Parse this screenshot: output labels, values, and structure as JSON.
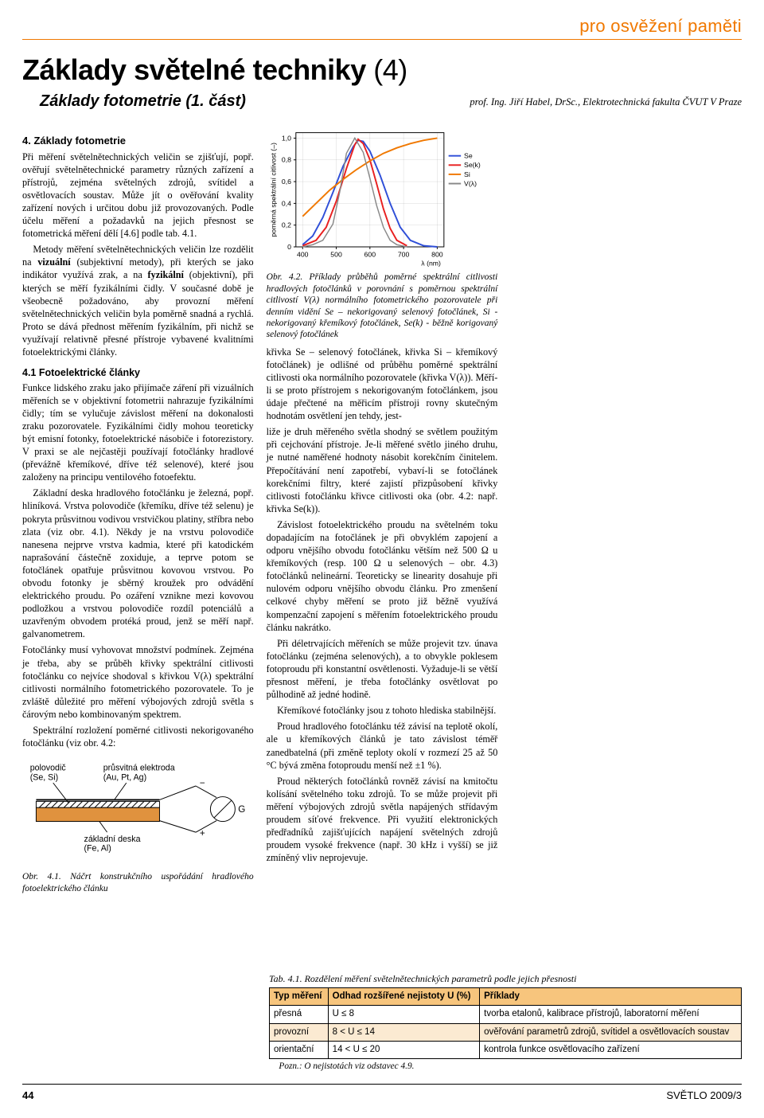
{
  "kicker": "pro osvěžení paměti",
  "title_main": "Základy světelné techniky ",
  "title_num": "(4)",
  "subtitle": "Základy fotometrie (1. část)",
  "byline": "prof. Ing. Jiří Habel, DrSc., Elektrotechnická fakulta ČVUT V Praze",
  "sec4": "4. Základy fotometrie",
  "p1": "Při měření světelnětechnických veličin se zjišťují, popř. ověřují světelnětechnické parametry různých zařízení a přístrojů, zejména světelných zdrojů, svítidel a osvětlovacích soustav. Může jít o ověřování kvality zařízení nových i určitou dobu již provozovaných. Podle účelu měření a požadavků na jejich přesnost se fotometrická měření dělí [4.6] podle tab. 4.1.",
  "p2a": "Metody měření světelnětechnických veličin lze rozdělit na ",
  "p2b": "vizuální",
  "p2c": " (subjektivní metody), při kterých se jako indikátor využívá zrak, a na ",
  "p2d": "fyzikální",
  "p2e": " (objektivní), při kterých se měří fyzikálními čidly. V současné době je všeobecně požadováno, aby provozní měření světelnětechnických veličin byla poměrně snadná a rychlá. Proto se dává přednost měřením fyzikálním, při nichž se využívají relativně přesné přístroje vybavené kvalitními fotoelektrickými články.",
  "sub41": "4.1 Fotoelektrické články",
  "p3": "Funkce lidského zraku jako přijímače záření při vizuálních měřeních se v objektivní fotometrii nahrazuje fyzikálními čidly; tím se vylučuje závislost měření na dokonalosti zraku pozorovatele. Fyzikálními čidly mohou teoreticky být emisní fotonky, fotoelektrické násobiče i fotorezistory. V praxi se ale nejčastěji používají fotočlánky hradlové (převážně křemíkové, dříve též selenové), které jsou založeny na principu ventilového fotoefektu.",
  "p4": "Základní deska hradlového fotočlánku je železná, popř. hliníková. Vrstva polovodiče (křemíku, dříve též selenu) je pokryta průsvitnou vodivou vrstvičkou platiny, stříbra nebo zlata (viz obr. 4.1). Někdy je na vrstvu polovodiče nanesena nejprve vrstva kadmia, které při katodickém naprašování částečně zoxiduje, a teprve potom se fotočlánek opatřuje průsvitnou kovovou vrstvou. Po obvodu fotonky je sběrný kroužek pro odvádění elektrického proudu. Po ozáření vznikne mezi kovovou podložkou a vrstvou polovodiče rozdíl potenciálů a uzavřeným obvodem protéká proud, jenž se měří např. galvanometrem.",
  "p5": "Fotočlánky musí vyhovovat množství podmínek. Zejména je třeba, aby se průběh křivky spektrální citlivosti fotočlánku co nejvíce shodoval s křivkou V(λ) spektrální citlivosti normálního fotometrického pozorovatele. To je zvláště důležité pro měření výbojových zdrojů světla s čárovým nebo kombinovaným spektrem.",
  "p6": "Spektrální rozložení poměrné citlivosti nekorigovaného fotočlánku (viz obr. 4.2: ",
  "d41_l1": "polovodič",
  "d41_l2": "(Se, Si)",
  "d41_l3": "průsvitná elektroda",
  "d41_l4": "(Au, Pt, Ag)",
  "d41_l5": "základní deska",
  "d41_l6": "(Fe, Al)",
  "d41_g": "G",
  "fig41cap": "Obr. 4.1. Náčrt konstrukčního uspořádání hradlového fotoelektrického článku",
  "chart42": {
    "ylabel": "poměrná spektrální citlivost (–)",
    "xlabel": "λ (nm)",
    "yticks": [
      "0",
      "0,2",
      "0,4",
      "0,6",
      "0,8",
      "1,0"
    ],
    "xticks": [
      "400",
      "500",
      "600",
      "700",
      "800"
    ],
    "xlim": [
      380,
      820
    ],
    "ylim": [
      0,
      1.05
    ],
    "grid_color": "#000000",
    "series": [
      {
        "name": "Se",
        "color": "#2f4fd8",
        "width": 2,
        "pts": [
          [
            400,
            0.02
          ],
          [
            430,
            0.1
          ],
          [
            460,
            0.27
          ],
          [
            490,
            0.5
          ],
          [
            520,
            0.74
          ],
          [
            550,
            0.92
          ],
          [
            565,
            0.98
          ],
          [
            580,
            0.97
          ],
          [
            600,
            0.88
          ],
          [
            630,
            0.66
          ],
          [
            660,
            0.4
          ],
          [
            690,
            0.18
          ],
          [
            720,
            0.06
          ],
          [
            760,
            0.01
          ],
          [
            800,
            0.0
          ]
        ]
      },
      {
        "name": "Se(k)",
        "color": "#e82020",
        "width": 2,
        "pts": [
          [
            400,
            0.01
          ],
          [
            440,
            0.06
          ],
          [
            470,
            0.18
          ],
          [
            500,
            0.42
          ],
          [
            530,
            0.72
          ],
          [
            555,
            0.94
          ],
          [
            565,
            0.99
          ],
          [
            580,
            0.95
          ],
          [
            600,
            0.8
          ],
          [
            620,
            0.58
          ],
          [
            640,
            0.35
          ],
          [
            660,
            0.17
          ],
          [
            680,
            0.06
          ],
          [
            710,
            0.01
          ]
        ]
      },
      {
        "name": "Si",
        "color": "#f07800",
        "width": 2,
        "pts": [
          [
            400,
            0.28
          ],
          [
            440,
            0.4
          ],
          [
            480,
            0.52
          ],
          [
            520,
            0.62
          ],
          [
            560,
            0.71
          ],
          [
            600,
            0.79
          ],
          [
            640,
            0.86
          ],
          [
            680,
            0.91
          ],
          [
            720,
            0.95
          ],
          [
            760,
            0.98
          ],
          [
            800,
            1.0
          ]
        ]
      },
      {
        "name": "V(λ)",
        "color": "#888888",
        "width": 1.5,
        "pts": [
          [
            400,
            0.0
          ],
          [
            430,
            0.02
          ],
          [
            460,
            0.06
          ],
          [
            490,
            0.21
          ],
          [
            510,
            0.5
          ],
          [
            530,
            0.86
          ],
          [
            555,
            1.0
          ],
          [
            580,
            0.87
          ],
          [
            600,
            0.63
          ],
          [
            620,
            0.38
          ],
          [
            640,
            0.18
          ],
          [
            660,
            0.06
          ],
          [
            680,
            0.02
          ],
          [
            710,
            0.0
          ]
        ]
      }
    ],
    "legend": [
      "Se",
      "Se(k)",
      "Si",
      "V(λ)"
    ]
  },
  "fig42cap": "Obr. 4.2. Příklady průběhů poměrné spektrální citlivosti hradlových fotočlánků v porovnání s poměrnou spektrální citlivostí V(λ) normálního fotometrického pozorovatele při denním vidění Se – nekorigovaný selenový fotočlánek, Si - nekorigovaný křemíkový fotočlánek, Se(k) - běžně korigovaný selenový fotočlánek",
  "p7": "křivka Se – selenový fotočlánek, křivka Si – křemíkový fotočlánek) je odlišné od průběhu poměrné spektrální citlivosti oka normálního pozorovatele (křivka V(λ)). Měří-li se proto přístrojem s nekorigovaným fotočlánkem, jsou údaje přečtené na měřicím přístroji rovny skutečným hodnotám osvětlení jen tehdy, jest-",
  "p8": "liže je druh měřeného světla shodný se světlem použitým při cejchování přístroje. Je-li měřené světlo jiného druhu, je nutné naměřené hodnoty násobit korekčním činitelem. Přepočítávání není zapotřebí, vybaví-li se fotočlánek korekčními filtry, které zajistí přizpůsobení křivky citlivosti fotočlánku křivce citlivosti oka (obr. 4.2: např. křivka Se(k)).",
  "p9": "Závislost fotoelektrického proudu na světelném toku dopadajícím na fotočlánek je při obvyklém zapojení a odporu vnějšího obvodu fotočlánku větším než 500 Ω u křemíkových (resp. 100 Ω u selenových – obr. 4.3) fotočlánků nelineární. Teoreticky se linearity dosahuje při nulovém odporu vnějšího obvodu článku. Pro zmenšení celkové chyby měření se proto již běžně využívá kompenzační zapojení s měřením fotoelektrického proudu článku nakrátko.",
  "p10": "Při déletrvajících měřeních se může projevit tzv. únava fotočlánku (zejména selenových), a to obvykle poklesem fotoproudu při konstantní osvětlenosti. Vyžaduje-li se větší přesnost měření, je třeba fotočlánky osvětlovat po půlhodině až jedné hodině.",
  "p11": "Křemíkové fotočlánky jsou z tohoto hlediska stabilnější.",
  "p12": "Proud hradlového fotočlánku též závisí na teplotě okolí, ale u křemíkových článků je tato závislost téměř zanedbatelná (při změně teploty okolí v rozmezí 25 až 50 °C bývá změna fotoproudu menší než ±1 %).",
  "p13": "Proud některých fotočlánků rovněž závisí na kmitočtu kolísání světelného toku zdrojů. To se může projevit při měření výbojových zdrojů světla napájených střídavým proudem síťové frekvence. Při využití elektronických předřadníků zajišťujících napájení světelných zdrojů proudem vysoké frekvence (např. 30 kHz i vyšší) se již zmíněný vliv neprojevuje.",
  "tabcap": "Tab. 4.1. Rozdělení měření světelnětechnických parametrů podle jejich přesnosti",
  "th1": "Typ měření",
  "th2": "Odhad rozšířené nejistoty U (%)",
  "th3": "Příklady",
  "r1c1": "přesná",
  "r1c2": "U ≤ 8",
  "r1c3": "tvorba etalonů, kalibrace přístrojů, laboratorní měření",
  "r2c1": "provozní",
  "r2c2": "8 < U ≤ 14",
  "r2c3": "ověřování parametrů zdrojů, svítidel a osvětlovacích soustav",
  "r3c1": "orientační",
  "r3c2": "14 < U ≤ 20",
  "r3c3": "kontrola funkce osvětlovacího zařízení",
  "tnote": "Pozn.: O nejistotách viz odstavec 4.9.",
  "pg": "44",
  "issue": "SVĚTLO 2009/3"
}
